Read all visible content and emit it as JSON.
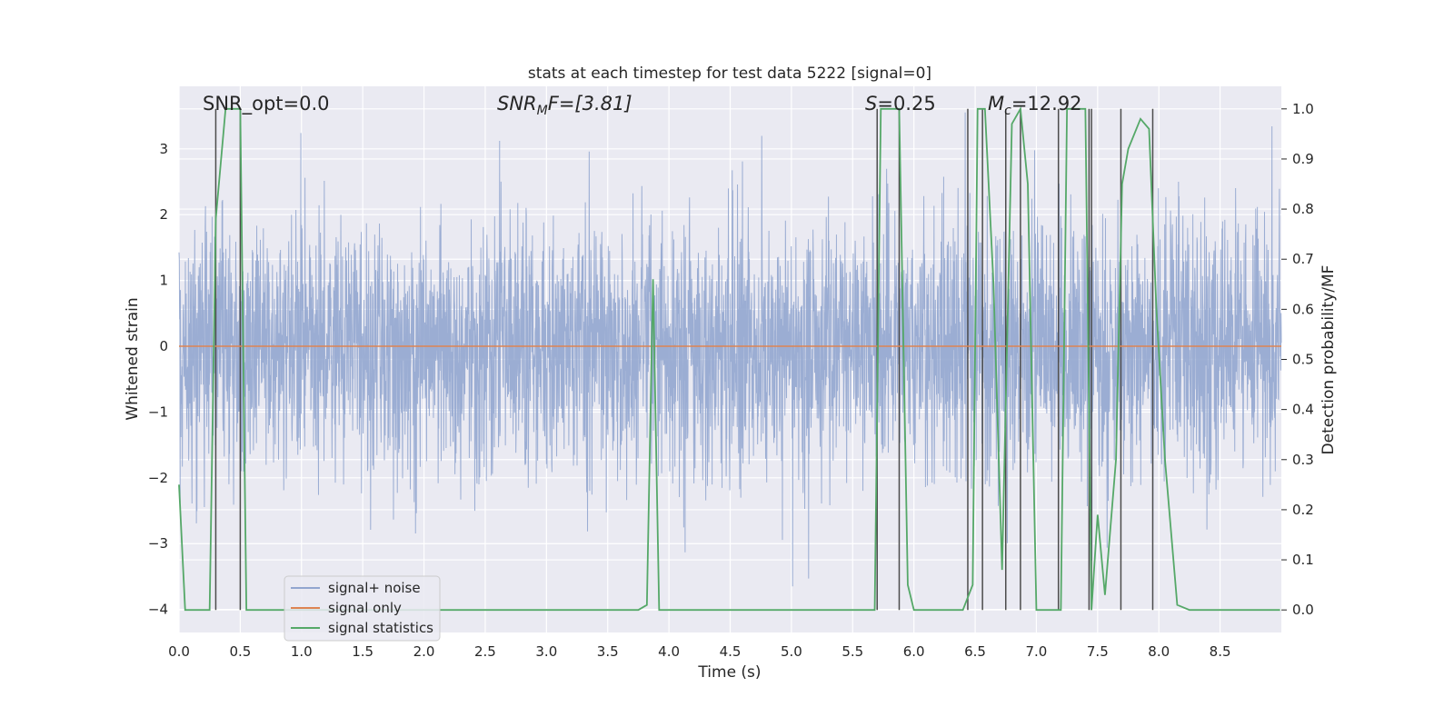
{
  "chart_data": {
    "type": "line",
    "title": "stats at each timestep for test data 5222 [signal=0]",
    "xlabel": "Time (s)",
    "ylabel_left": "Whitened strain",
    "ylabel_right": "Detection probability/MF",
    "xlim": [
      0.0,
      9.0
    ],
    "ylim_left": [
      -4.35,
      3.95
    ],
    "ylim_right": [
      -0.045,
      1.045
    ],
    "x_ticks": [
      "0.0",
      "0.5",
      "1.0",
      "1.5",
      "2.0",
      "2.5",
      "3.0",
      "3.5",
      "4.0",
      "4.5",
      "5.0",
      "5.5",
      "6.0",
      "6.5",
      "7.0",
      "7.5",
      "8.0",
      "8.5"
    ],
    "y_ticks_left": [
      "3",
      "2",
      "1",
      "0",
      "−1",
      "−2",
      "−3",
      "−4"
    ],
    "y_ticks_right": [
      "1.0",
      "0.9",
      "0.8",
      "0.7",
      "0.6",
      "0.5",
      "0.4",
      "0.3",
      "0.2",
      "0.1",
      "0.0"
    ],
    "grid": true,
    "legend_position": "lower-left",
    "annotations": {
      "snr_opt": "SNR_opt=0.0",
      "snr_mf_main": "SNR",
      "snr_mf_sub": "M",
      "snr_mf_rest": "F=[3.81]",
      "s_main": "S",
      "s_rest": "=0.25",
      "mc_main": "M",
      "mc_sub": "c",
      "mc_rest": "=12.92"
    },
    "series": [
      {
        "name": "signal+ noise",
        "color": "#92a6cf",
        "axis": "left",
        "description_stats": {
          "std": 0.95,
          "min": -3.65,
          "max": 3.6
        }
      },
      {
        "name": "signal only",
        "color": "#dd8452",
        "axis": "left",
        "x": [
          0.0,
          9.0
        ],
        "y": [
          0.0,
          0.0
        ]
      },
      {
        "name": "signal statistics",
        "color": "#55a868",
        "axis": "right",
        "x": [
          0.0,
          0.05,
          0.25,
          0.3,
          0.38,
          0.45,
          0.5,
          0.55,
          0.75,
          0.9,
          1.5,
          2.0,
          2.5,
          3.0,
          3.5,
          3.75,
          3.82,
          3.87,
          3.92,
          3.98,
          4.5,
          5.0,
          5.5,
          5.68,
          5.73,
          5.8,
          5.88,
          5.95,
          6.0,
          6.2,
          6.4,
          6.48,
          6.52,
          6.58,
          6.65,
          6.72,
          6.8,
          6.87,
          6.93,
          7.0,
          7.15,
          7.2,
          7.25,
          7.4,
          7.45,
          7.5,
          7.56,
          7.65,
          7.7,
          7.75,
          7.85,
          7.92,
          7.98,
          8.05,
          8.15,
          8.25,
          8.5,
          8.8,
          8.99
        ],
        "y": [
          0.25,
          0.0,
          0.0,
          0.78,
          1.0,
          1.0,
          1.0,
          0.0,
          0.0,
          0.0,
          0.0,
          0.0,
          0.0,
          0.0,
          0.0,
          0.0,
          0.01,
          0.66,
          0.0,
          0.0,
          0.0,
          0.0,
          0.0,
          0.0,
          1.0,
          1.0,
          1.0,
          0.05,
          0.0,
          0.0,
          0.0,
          0.05,
          1.0,
          1.0,
          0.65,
          0.08,
          0.97,
          1.0,
          0.85,
          0.0,
          0.0,
          0.0,
          1.0,
          1.0,
          0.0,
          0.19,
          0.03,
          0.3,
          0.85,
          0.92,
          0.98,
          0.96,
          0.6,
          0.3,
          0.01,
          0.0,
          0.0,
          0.0,
          0.0
        ]
      },
      {
        "name": "",
        "color": "#4c4c4c",
        "axis": "right",
        "type": "vertical-lines",
        "x": [
          0.3,
          0.5,
          5.7,
          5.88,
          6.44,
          6.56,
          6.75,
          6.87,
          7.18,
          7.43,
          7.45,
          7.69,
          7.95
        ],
        "y_top": 1.0
      }
    ]
  }
}
